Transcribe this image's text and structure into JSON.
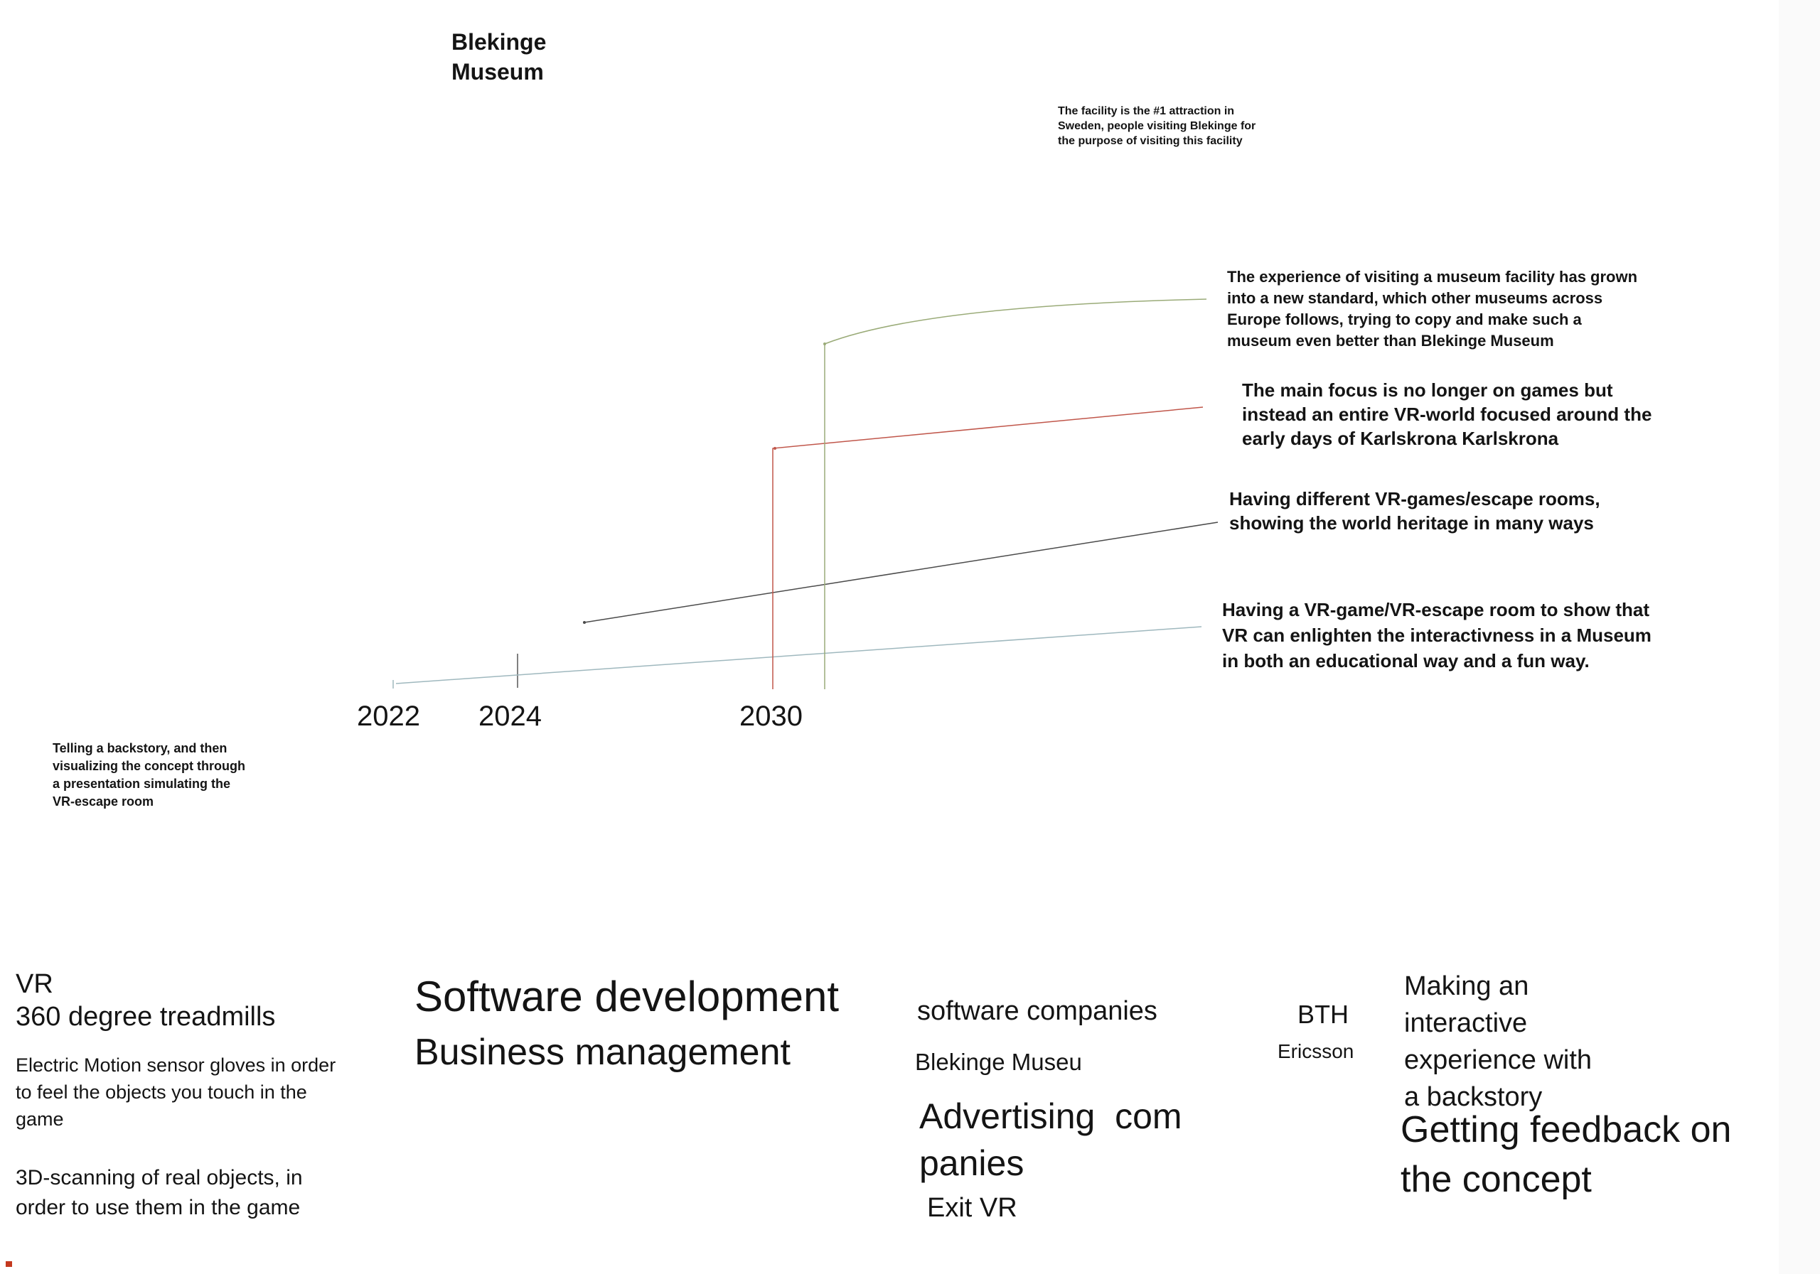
{
  "title": "Blekinge\nMuseum",
  "timeline": {
    "years": [
      "2022",
      "2024",
      "2030"
    ],
    "milestones": [
      "Having a VR-game/VR-escape room to show that VR can enlighten the interactivness in a Museum in both an educational way and a fun way.",
      "Having different VR-games/escape rooms, showing the world heritage in many ways",
      "The main focus is no longer on games but instead an entire VR-world focused around the early days of Karlskrona Karlskrona",
      "The experience of visiting a museum facility has grown into a new standard, which other museums across Europe follows, trying to copy and make such a museum even better than Blekinge Museum",
      "The facility is the #1 attraction in Sweden, people visiting Blekinge for the purpose of visiting this facility"
    ],
    "colors": {
      "blue": "#9fb8be",
      "dark": "#4a4a4a",
      "red": "#c0564a",
      "green": "#9aab78"
    }
  },
  "backstory_note": "Telling a backstory, and then\nvisualizing the concept through\na presentation simulating the\nVR-escape room",
  "technologies": {
    "vr": "VR",
    "treadmills": "360 degree treadmills",
    "gloves": "Electric Motion sensor gloves in order\nto feel the objects you touch in the\ngame",
    "scanning": "3D-scanning of real objects, in\norder to use them in the game"
  },
  "competences": {
    "software": "Software development",
    "business": "Business management"
  },
  "partners": {
    "software_companies": "software companies",
    "museum": "Blekinge Museu",
    "advertising": "Advertising  com\npanies",
    "exit_vr": "Exit VR",
    "bth": "BTH",
    "ericsson": "Ericsson"
  },
  "activities": {
    "interactive": "Making an\ninteractive\nexperience with\na backstory",
    "feedback": "Getting feedback on\nthe concept"
  }
}
